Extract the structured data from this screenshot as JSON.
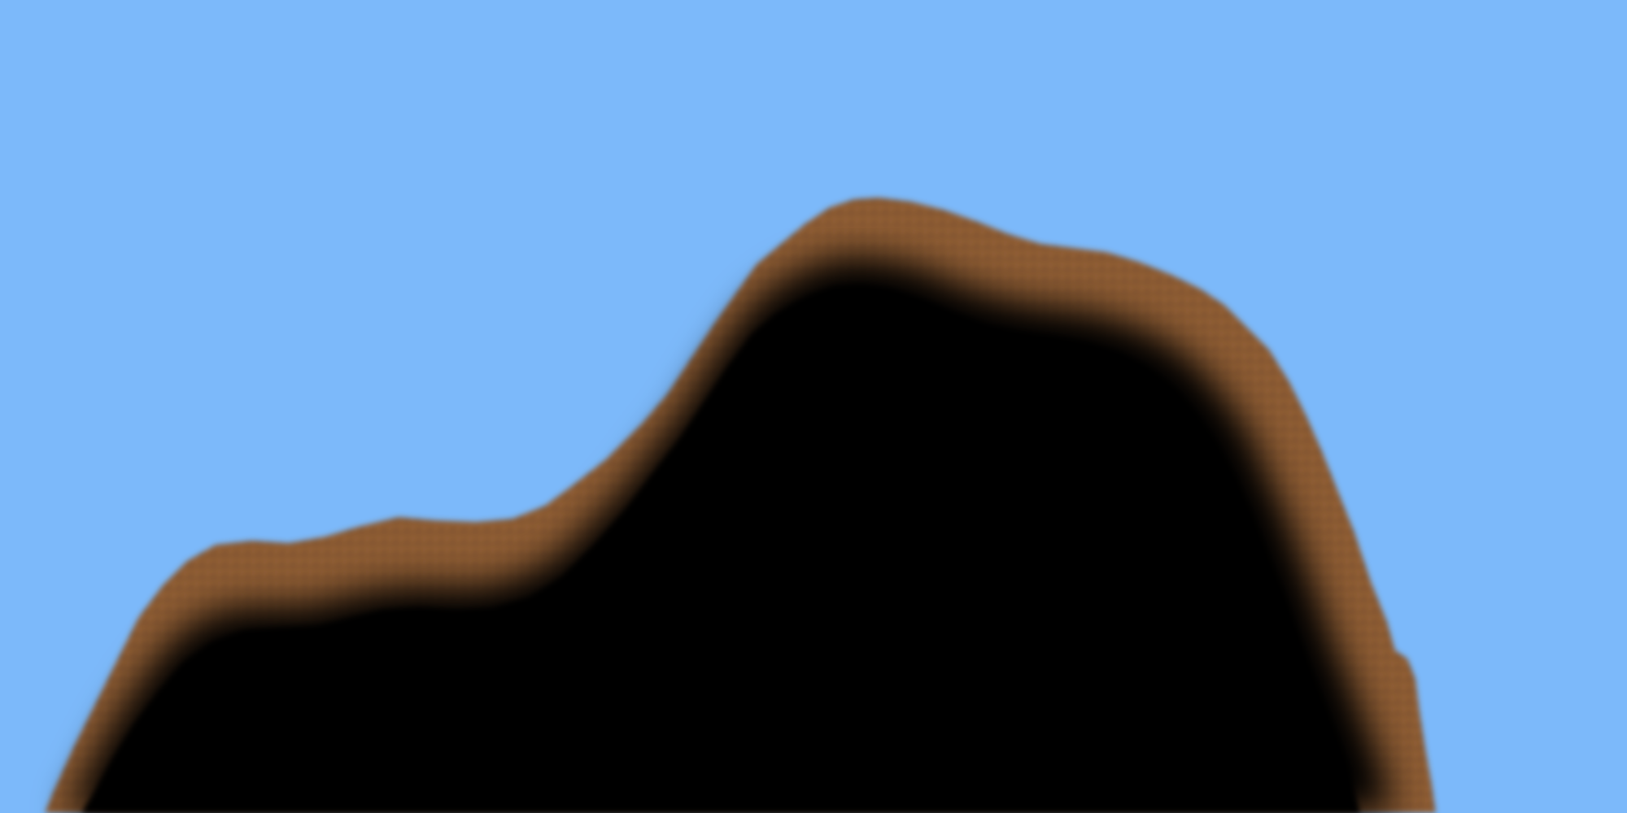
{
  "scene": {
    "sky_color": "#7cb9fa",
    "terrain_fill_color": "#000000",
    "terrain_edge_color": "#8a5a32"
  }
}
